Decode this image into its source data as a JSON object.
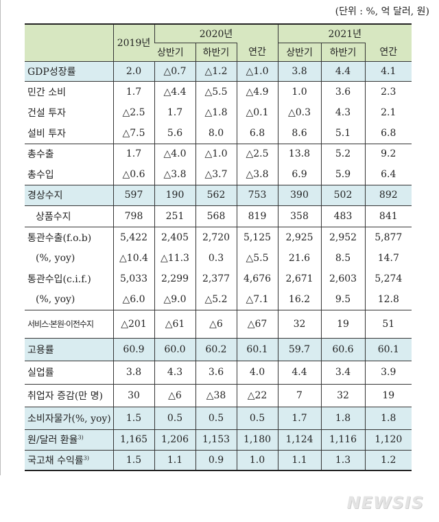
{
  "unit_note": "(단위 : %, 억 달러, 원)",
  "header": {
    "y2019": "2019년",
    "y2020": "2020년",
    "y2021": "2021년",
    "sub": [
      "상반기",
      "하반기",
      "연간",
      "상반기",
      "하반기",
      "연간"
    ]
  },
  "rows": [
    {
      "label": "GDP성장률",
      "values": [
        "2.0",
        "△0.7",
        "△1.2",
        "△1.0",
        "3.8",
        "4.4",
        "4.1"
      ],
      "hl": true,
      "bt": false
    },
    {
      "label": "민간 소비",
      "values": [
        "1.7",
        "△4.4",
        "△5.5",
        "△4.9",
        "1.0",
        "3.6",
        "2.3"
      ],
      "hl": false,
      "bt": true
    },
    {
      "label": "건설 투자",
      "values": [
        "△2.5",
        "1.7",
        "△1.8",
        "△0.1",
        "△0.3",
        "4.3",
        "2.1"
      ],
      "hl": false,
      "bt": false
    },
    {
      "label": "설비 투자",
      "values": [
        "△7.5",
        "5.6",
        "8.0",
        "6.8",
        "8.6",
        "5.1",
        "6.8"
      ],
      "hl": false,
      "bt": false
    },
    {
      "label": "총수출",
      "values": [
        "1.7",
        "△4.0",
        "△1.0",
        "△2.5",
        "13.8",
        "5.2",
        "9.2"
      ],
      "hl": false,
      "bt": true
    },
    {
      "label": "총수입",
      "values": [
        "△0.6",
        "△3.8",
        "△3.7",
        "△3.8",
        "6.9",
        "5.9",
        "6.4"
      ],
      "hl": false,
      "bt": false
    },
    {
      "label": "경상수지",
      "values": [
        "597",
        "190",
        "562",
        "753",
        "390",
        "502",
        "892"
      ],
      "hl": true,
      "bt": true
    },
    {
      "label": "상품수지",
      "values": [
        "798",
        "251",
        "568",
        "819",
        "358",
        "483",
        "841"
      ],
      "hl": false,
      "bt": true,
      "indent": true
    },
    {
      "label": "통관수출(f.o.b)",
      "values": [
        "5,422",
        "2,405",
        "2,720",
        "5,125",
        "2,925",
        "2,952",
        "5,877"
      ],
      "hl": false,
      "bt": true
    },
    {
      "label": "(%, yoy)",
      "values": [
        "△10.4",
        "△11.3",
        "0.3",
        "△5.5",
        "21.6",
        "8.5",
        "14.7"
      ],
      "hl": false,
      "bt": false,
      "indent": true
    },
    {
      "label": "통관수입(c.i.f.)",
      "values": [
        "5,033",
        "2,299",
        "2,377",
        "4,676",
        "2,671",
        "2,603",
        "5,274"
      ],
      "hl": false,
      "bt": false
    },
    {
      "label": "(%, yoy)",
      "values": [
        "△6.0",
        "△9.0",
        "△5.2",
        "△7.1",
        "16.2",
        "9.5",
        "12.8"
      ],
      "hl": false,
      "bt": false,
      "indent": true
    },
    {
      "label": "서비스·본원·이전수지",
      "values": [
        "△201",
        "△61",
        "△6",
        "△67",
        "32",
        "19",
        "51"
      ],
      "hl": false,
      "bt": true,
      "small": true
    },
    {
      "label": "고용률",
      "values": [
        "60.9",
        "60.0",
        "60.2",
        "60.1",
        "59.7",
        "60.6",
        "60.1"
      ],
      "hl": true,
      "bt": true
    },
    {
      "label": "실업률",
      "values": [
        "3.8",
        "4.3",
        "3.6",
        "4.0",
        "4.4",
        "3.4",
        "3.9"
      ],
      "hl": false,
      "bt": true
    },
    {
      "label": "취업자 증감(만 명)",
      "values": [
        "30",
        "△6",
        "△38",
        "△22",
        "7",
        "32",
        "19"
      ],
      "hl": false,
      "bt": true
    },
    {
      "label": "소비자물가(%, yoy)",
      "values": [
        "1.5",
        "0.5",
        "0.5",
        "0.5",
        "1.7",
        "1.8",
        "1.8"
      ],
      "hl": true,
      "bt": true
    },
    {
      "label": "원/달러 환율",
      "sup": "3)",
      "values": [
        "1,165",
        "1,206",
        "1,153",
        "1,180",
        "1,124",
        "1,116",
        "1,120"
      ],
      "hl": true,
      "bt": true
    },
    {
      "label": "국고채 수익률",
      "sup": "3)",
      "values": [
        "1.5",
        "1.1",
        "0.9",
        "1.0",
        "1.1",
        "1.3",
        "1.2"
      ],
      "hl": true,
      "bt": true
    }
  ],
  "watermark": "NEWSIS",
  "colors": {
    "header_bg": "#d7e7c1",
    "highlight_bg": "#d9ecf0"
  }
}
